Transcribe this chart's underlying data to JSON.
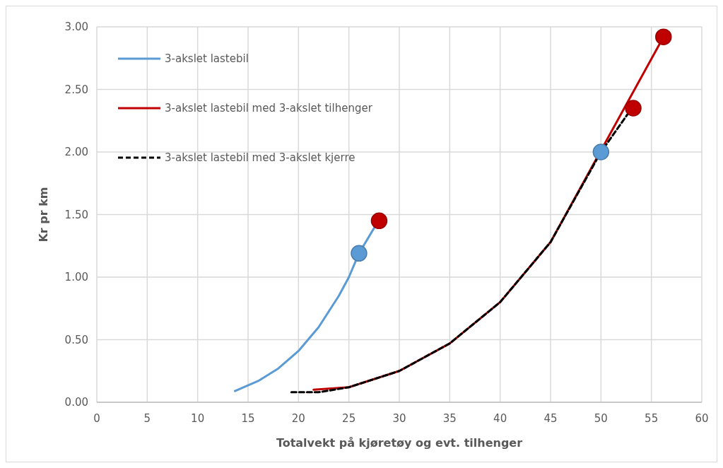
{
  "chart_data": {
    "type": "line",
    "xlabel": "Totalvekt på kjøretøy og evt. tilhenger",
    "ylabel": "Kr pr km",
    "xlim": [
      0,
      60
    ],
    "xticks": [
      0,
      5,
      10,
      15,
      20,
      25,
      30,
      35,
      40,
      45,
      50,
      55,
      60
    ],
    "ylim": [
      0,
      3
    ],
    "yticks": [
      {
        "value": 0,
        "label": "0.00"
      },
      {
        "value": 0.5,
        "label": "0.50"
      },
      {
        "value": 1,
        "label": "1.00"
      },
      {
        "value": 1.5,
        "label": "1.50"
      },
      {
        "value": 2,
        "label": "2.00"
      },
      {
        "value": 2.5,
        "label": "2.50"
      },
      {
        "value": 3,
        "label": "3.00"
      }
    ],
    "grid": true,
    "legend": "top left",
    "marker": "none",
    "series": [
      {
        "name": "3-akslet lastebil",
        "color": "#5b9bd5",
        "x": [
          13.7,
          16,
          18,
          20,
          22,
          24,
          25,
          26,
          27.7
        ],
        "values": [
          0.09,
          0.17,
          0.27,
          0.41,
          0.6,
          0.85,
          1.0,
          1.19,
          1.42
        ]
      },
      {
        "name": "3-akslet lastebil med 3-akslet tilhenger",
        "color": "#c00000",
        "x": [
          21.5,
          25,
          30,
          35,
          40,
          45,
          56.2
        ],
        "values": [
          0.1,
          0.12,
          0.25,
          0.47,
          0.8,
          1.28,
          2.92
        ]
      },
      {
        "name": "3-akslet lastebil med 3-akslet kjerre",
        "color": "#000000",
        "line_style": "dashed",
        "x": [
          19.3,
          22,
          25,
          30,
          35,
          40,
          45,
          50,
          52.8
        ],
        "values": [
          0.08,
          0.08,
          0.12,
          0.25,
          0.47,
          0.8,
          1.28,
          2.0,
          2.32
        ]
      },
      {
        "type": "scatter",
        "marker": "circle",
        "color": "#5b9bd5",
        "x": [
          26,
          50
        ],
        "values": [
          1.19,
          2.0
        ]
      },
      {
        "type": "scatter",
        "marker": "circle",
        "color": "#c00000",
        "x": [
          28,
          53.2,
          56.2
        ],
        "values": [
          1.45,
          2.35,
          2.92
        ]
      }
    ]
  }
}
